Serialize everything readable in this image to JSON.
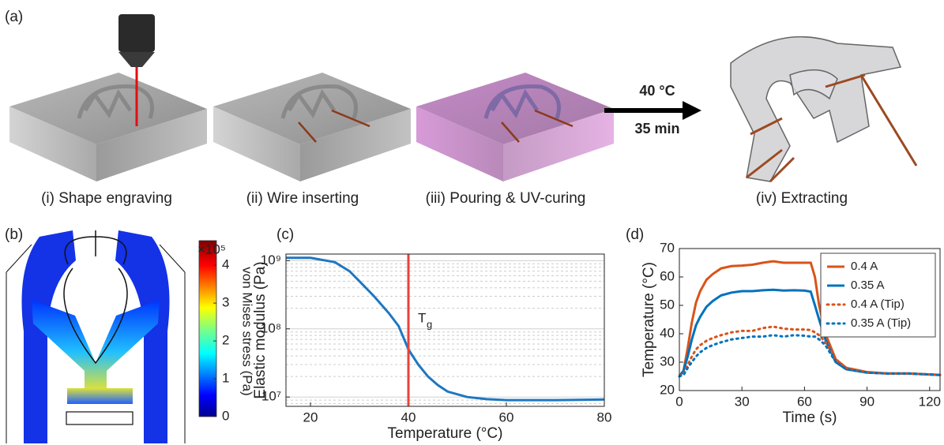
{
  "panels": [
    "(a)",
    "(b)",
    "(c)",
    "(d)"
  ],
  "steps": [
    "(i) Shape engraving",
    "(ii) Wire inserting",
    "(iii) Pouring & UV-curing",
    "(iv) Extracting"
  ],
  "arrow": {
    "top": "40 °C",
    "bottom": "35 min"
  },
  "colorbar": {
    "label": "von Mises stress (Pa)",
    "multiplier": "×10⁵",
    "lim": [
      0,
      4.65
    ],
    "ticks": [
      0,
      1,
      2,
      3,
      4
    ]
  },
  "chart_data": [
    {
      "type": "line",
      "xlabel": "Temperature (°C)",
      "ylabel": "Elastic modulus (Pa)",
      "log_y": true,
      "grid": true,
      "xlim": [
        15,
        80
      ],
      "xticks": [
        20,
        40,
        60,
        80
      ],
      "ylim": [
        7300000,
        1250000000
      ],
      "yticks": [
        {
          "value": 10000000,
          "label": "10⁷"
        },
        {
          "value": 100000000,
          "label": "10⁸"
        },
        {
          "value": 1000000000,
          "label": "10⁹"
        }
      ],
      "x": [
        15,
        20,
        25,
        28,
        30,
        33,
        36,
        38,
        40,
        42,
        44,
        46,
        48,
        52,
        56,
        60,
        70,
        80
      ],
      "values": [
        1100000000,
        1100000000,
        950000000,
        700000000,
        500000000,
        300000000,
        170000000,
        110000000,
        50000000,
        30000000,
        20000000,
        15000000,
        12000000,
        10000000,
        9300000,
        9000000,
        9000000,
        9200000
      ],
      "color": "#1f77c0",
      "vline": {
        "x": 40,
        "color": "#e8413c",
        "label": "T",
        "label_sub": "g"
      }
    },
    {
      "type": "line",
      "xlabel": "Time (s)",
      "ylabel": "Temperature (°C)",
      "legend": "upper right",
      "xlim": [
        0,
        125
      ],
      "xticks": [
        0,
        30,
        60,
        90,
        120
      ],
      "ylim": [
        20,
        70
      ],
      "yticks": [
        20,
        30,
        40,
        50,
        60,
        70
      ],
      "x": [
        0,
        2,
        4,
        6,
        8,
        10,
        13,
        16,
        20,
        25,
        30,
        35,
        40,
        45,
        50,
        55,
        60,
        63,
        65,
        67,
        70,
        75,
        80,
        90,
        100,
        110,
        125
      ],
      "series": [
        {
          "name": "0.4 A",
          "color": "#d95319",
          "style": "solid",
          "values": [
            25,
            27,
            35,
            44,
            51,
            55,
            59,
            61,
            63,
            63.8,
            64,
            64.3,
            65,
            65.5,
            65,
            65,
            65,
            65,
            60,
            50,
            40,
            31,
            28,
            26.5,
            26,
            26,
            25.5
          ]
        },
        {
          "name": "0.35 A",
          "color": "#0072bd",
          "style": "solid",
          "values": [
            25,
            27,
            32,
            38,
            43,
            46,
            49.5,
            51.5,
            53.5,
            54.5,
            55,
            55,
            55.3,
            55.5,
            55.2,
            55.3,
            55.2,
            54.8,
            50,
            45,
            38,
            30,
            27.5,
            26.3,
            26,
            26,
            25.5
          ]
        },
        {
          "name": "0.4 A (Tip)",
          "color": "#d95319",
          "style": "dotted",
          "values": [
            25,
            26,
            29,
            32,
            34.5,
            36,
            37.5,
            38.5,
            39.5,
            40.5,
            41,
            41,
            42,
            42.5,
            41.8,
            41.5,
            41.5,
            41.3,
            40.5,
            39.5,
            37,
            31,
            28,
            26.5,
            26,
            26,
            25.5
          ]
        },
        {
          "name": "0.35 A (Tip)",
          "color": "#0072bd",
          "style": "dotted",
          "values": [
            25,
            25.5,
            28,
            30,
            32,
            33.5,
            35,
            36,
            37,
            38,
            38.5,
            39,
            39,
            39.5,
            39,
            39.5,
            39.3,
            39,
            39,
            38,
            36,
            30,
            27.5,
            26.3,
            26,
            26,
            25.5
          ]
        }
      ]
    }
  ]
}
